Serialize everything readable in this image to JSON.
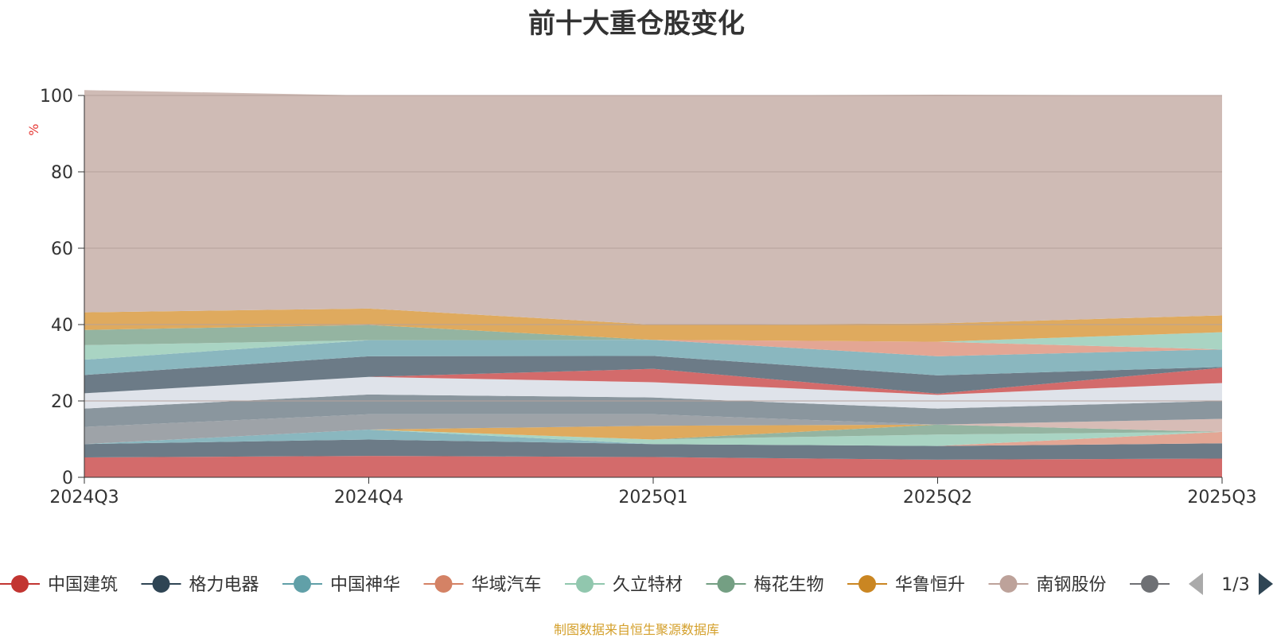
{
  "chart_data": {
    "type": "area",
    "stacked": true,
    "title": "前十大重仓股变化",
    "ylabel": "%",
    "ylim": [
      0,
      100
    ],
    "yticks": [
      0,
      20,
      40,
      60,
      80,
      100
    ],
    "categories": [
      "2024Q3",
      "2024Q4",
      "2025Q1",
      "2025Q2",
      "2025Q3"
    ],
    "grid": true,
    "legend_position": "bottom",
    "series": [
      {
        "name": "中国建筑",
        "color": "#d36b6b",
        "values": [
          5.2,
          5.6,
          5.3,
          4.6,
          4.9
        ]
      },
      {
        "name": "格力电器",
        "color": "#6c7b87",
        "values": [
          3.5,
          4.3,
          3.4,
          3.6,
          4.0
        ]
      },
      {
        "name": "中国神华",
        "color": "#8ab7bf",
        "values": [
          0.0,
          2.6,
          0.0,
          0.0,
          0.0
        ]
      },
      {
        "name": "华域汽车",
        "color": "#e3a694",
        "values": [
          0.0,
          0.0,
          0.0,
          0.0,
          3.0
        ]
      },
      {
        "name": "久立特材",
        "color": "#a9d4c3",
        "values": [
          0.0,
          0.0,
          1.2,
          3.0,
          0.0
        ]
      },
      {
        "name": "梅花生物",
        "color": "#94b4a1",
        "values": [
          0.0,
          0.0,
          0.0,
          2.6,
          0.0
        ]
      },
      {
        "name": "华鲁恒升",
        "color": "#dfaa5e",
        "values": [
          0.0,
          0.0,
          3.6,
          0.0,
          0.0
        ]
      },
      {
        "name": "南钢股份",
        "color": "#d7bcb6",
        "values": [
          0.0,
          0.0,
          0.0,
          0.0,
          3.4
        ]
      },
      {
        "name": "",
        "color": "#9ea3a8",
        "values": [
          4.5,
          4.0,
          3.0,
          0.0,
          0.0
        ]
      },
      {
        "name": "",
        "color": "#8a969e",
        "values": [
          4.8,
          5.2,
          4.4,
          4.2,
          4.7
        ]
      },
      {
        "name": "",
        "color": "#dfe3ea",
        "values": [
          4.0,
          4.6,
          4.0,
          3.6,
          4.7
        ]
      },
      {
        "name": "",
        "color": "#d36b6b",
        "values": [
          0.0,
          0.0,
          3.5,
          0.3,
          4.0
        ]
      },
      {
        "name": "",
        "color": "#6c7b87",
        "values": [
          4.8,
          5.4,
          3.4,
          4.8,
          0.2
        ]
      },
      {
        "name": "",
        "color": "#8ab7bf",
        "values": [
          4.0,
          4.2,
          4.2,
          5.0,
          4.6
        ]
      },
      {
        "name": "",
        "color": "#e3a694",
        "values": [
          0.0,
          0.0,
          0.0,
          3.8,
          0.0
        ]
      },
      {
        "name": "",
        "color": "#a9d4c3",
        "values": [
          3.8,
          0.0,
          0.0,
          0.0,
          4.5
        ]
      },
      {
        "name": "",
        "color": "#94b4a1",
        "values": [
          4.0,
          4.0,
          0.0,
          0.0,
          0.0
        ]
      },
      {
        "name": "",
        "color": "#dfaa5e",
        "values": [
          4.6,
          4.3,
          4.0,
          4.8,
          4.4
        ]
      },
      {
        "name": "",
        "color": "#cfbbb5",
        "values": [
          58.2,
          55.8,
          60.0,
          59.9,
          57.6
        ]
      }
    ]
  },
  "legend": {
    "items": [
      {
        "name": "中国建筑",
        "color": "#c23531"
      },
      {
        "name": "格力电器",
        "color": "#2f4554"
      },
      {
        "name": "中国神华",
        "color": "#61a0a8"
      },
      {
        "name": "华域汽车",
        "color": "#d48265"
      },
      {
        "name": "久立特材",
        "color": "#91c7ae"
      },
      {
        "name": "梅花生物",
        "color": "#749f83"
      },
      {
        "name": "华鲁恒升",
        "color": "#ca8622"
      },
      {
        "name": "南钢股份",
        "color": "#bda29a"
      },
      {
        "name": "",
        "color": "#6e7074"
      }
    ],
    "truncated_glyph": "ı",
    "page_indicator": "1/3"
  },
  "source_text": "制图数据来自恒生聚源数据库"
}
